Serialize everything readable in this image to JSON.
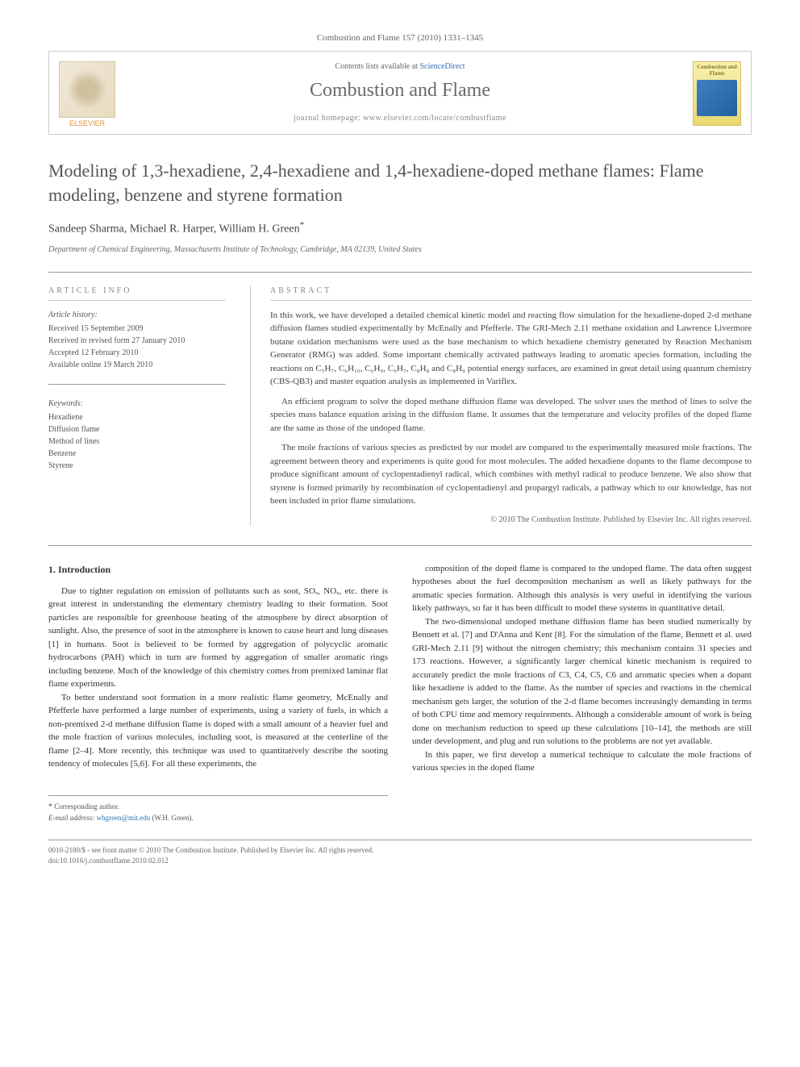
{
  "header": {
    "citation": "Combustion and Flame 157 (2010) 1331–1345",
    "contents_prefix": "Contents lists available at ",
    "contents_link": "ScienceDirect",
    "journal_name": "Combustion and Flame",
    "homepage_prefix": "journal homepage: ",
    "homepage_url": "www.elsevier.com/locate/combustflame",
    "publisher": "ELSEVIER",
    "cover_title": "Combustion and Flame"
  },
  "article": {
    "title": "Modeling of 1,3-hexadiene, 2,4-hexadiene and 1,4-hexadiene-doped methane flames: Flame modeling, benzene and styrene formation",
    "authors": "Sandeep Sharma, Michael R. Harper, William H. Green",
    "corresponding_mark": "*",
    "affiliation": "Department of Chemical Engineering, Massachusetts Institute of Technology, Cambridge, MA 02139, United States"
  },
  "info": {
    "section_label": "ARTICLE INFO",
    "history_label": "Article history:",
    "received": "Received 15 September 2009",
    "revised": "Received in revised form 27 January 2010",
    "accepted": "Accepted 12 February 2010",
    "online": "Available online 19 March 2010",
    "keywords_label": "Keywords:",
    "keywords": [
      "Hexadiene",
      "Diffusion flame",
      "Method of lines",
      "Benzene",
      "Styrene"
    ]
  },
  "abstract": {
    "label": "ABSTRACT",
    "p1": "In this work, we have developed a detailed chemical kinetic model and reacting flow simulation for the hexadiene-doped 2-d methane diffusion flames studied experimentally by McEnally and Pfefferle. The GRI-Mech 2.11 methane oxidation and Lawrence Livermore butane oxidation mechanisms were used as the base mechanism to which hexadiene chemistry generated by Reaction Mechanism Generator (RMG) was added. Some important chemically activated pathways leading to aromatic species formation, including the reactions on C₅H₇, C₆H₁₀, C₆H₉, C₆H₇, C₈H₈ and C₈H₉ potential energy surfaces, are examined in great detail using quantum chemistry (CBS-QB3) and master equation analysis as implemented in Variflex.",
    "p2": "An efficient program to solve the doped methane diffusion flame was developed. The solver uses the method of lines to solve the species mass balance equation arising in the diffusion flame. It assumes that the temperature and velocity profiles of the doped flame are the same as those of the undoped flame.",
    "p3": "The mole fractions of various species as predicted by our model are compared to the experimentally measured mole fractions. The agreement between theory and experiments is quite good for most molecules. The added hexadiene dopants to the flame decompose to produce significant amount of cyclopentadienyl radical, which combines with methyl radical to produce benzene. We also show that styrene is formed primarily by recombination of cyclopentadienyl and propargyl radicals, a pathway which to our knowledge, has not been included in prior flame simulations.",
    "copyright": "© 2010 The Combustion Institute. Published by Elsevier Inc. All rights reserved."
  },
  "body": {
    "section_heading": "1. Introduction",
    "col1_p1": "Due to tighter regulation on emission of pollutants such as soot, SOₓ, NOₓ, etc. there is great interest in understanding the elementary chemistry leading to their formation. Soot particles are responsible for greenhouse heating of the atmosphere by direct absorption of sunlight. Also, the presence of soot in the atmosphere is known to cause heart and lung diseases [1] in humans. Soot is believed to be formed by aggregation of polycyclic aromatic hydrocarbons (PAH) which in turn are formed by aggregation of smaller aromatic rings including benzene. Much of the knowledge of this chemistry comes from premixed laminar flat flame experiments.",
    "col1_p2": "To better understand soot formation in a more realistic flame geometry, McEnally and Pfefferle have performed a large number of experiments, using a variety of fuels, in which a non-premixed 2-d methane diffusion flame is doped with a small amount of a heavier fuel and the mole fraction of various molecules, including soot, is measured at the centerline of the flame [2–4]. More recently, this technique was used to quantitatively describe the sooting tendency of molecules [5,6]. For all these experiments, the",
    "col2_p1": "composition of the doped flame is compared to the undoped flame. The data often suggest hypotheses about the fuel decomposition mechanism as well as likely pathways for the aromatic species formation. Although this analysis is very useful in identifying the various likely pathways, so far it has been difficult to model these systems in quantitative detail.",
    "col2_p2": "The two-dimensional undoped methane diffusion flame has been studied numerically by Bennett et al. [7] and D'Anna and Kent [8]. For the simulation of the flame, Bennett et al. used GRI-Mech 2.11 [9] without the nitrogen chemistry; this mechanism contains 31 species and 173 reactions. However, a significantly larger chemical kinetic mechanism is required to accurately predict the mole fractions of C3, C4, C5, C6 and aromatic species when a dopant like hexadiene is added to the flame. As the number of species and reactions in the chemical mechanism gets larger, the solution of the 2-d flame becomes increasingly demanding in terms of both CPU time and memory requirements. Although a considerable amount of work is being done on mechanism reduction to speed up these calculations [10–14], the methods are still under development, and plug and run solutions to the problems are not yet available.",
    "col2_p3": "In this paper, we first develop a numerical technique to calculate the mole fractions of various species in the doped flame"
  },
  "footer": {
    "corresponding_label": "Corresponding author.",
    "email_label": "E-mail address:",
    "email": "whgreen@mit.edu",
    "email_name": "(W.H. Green).",
    "issn": "0010-2180/$ - see front matter © 2010 The Combustion Institute. Published by Elsevier Inc. All rights reserved.",
    "doi": "doi:10.1016/j.combustflame.2010.02.012"
  }
}
